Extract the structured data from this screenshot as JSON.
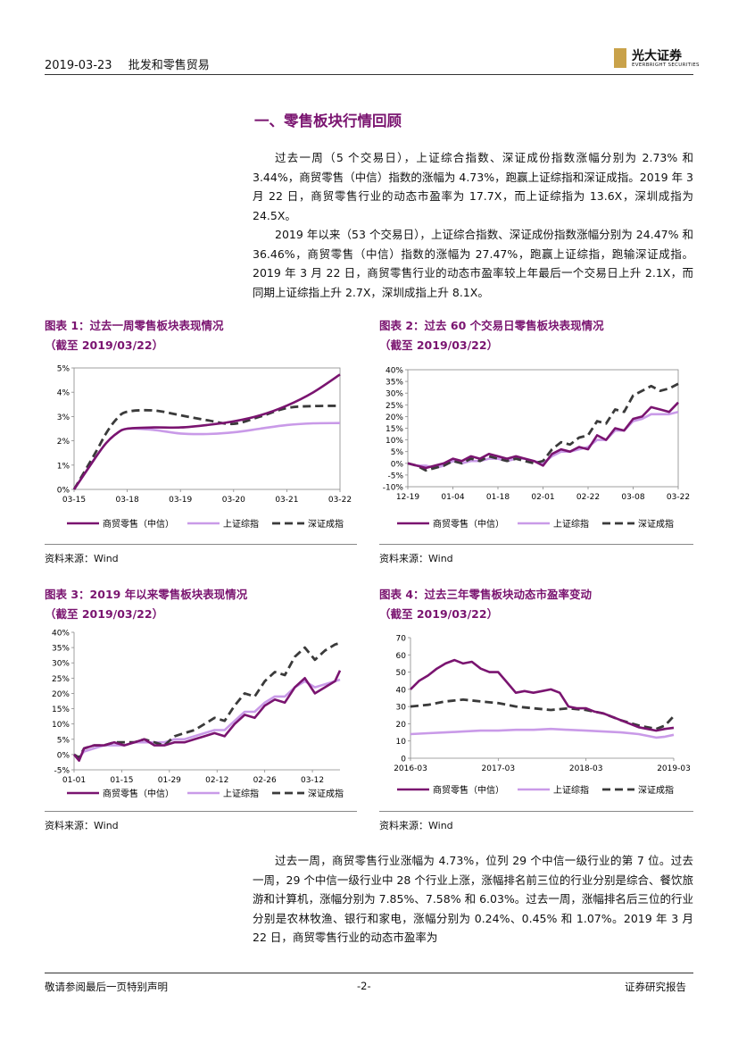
{
  "header": {
    "date": "2019-03-23",
    "industry": "批发和零售贸易",
    "logo_cn": "光大证券",
    "logo_en": "EVERBRIGHT SECURITIES"
  },
  "section_title": "一、零售板块行情回顾",
  "paragraphs_top": [
    "过去一周（5 个交易日），上证综合指数、深证成份指数涨幅分别为 2.73% 和 3.44%，商贸零售（中信）指数的涨幅为 4.73%，跑赢上证综指和深证成指。2019 年 3 月 22 日，商贸零售行业的动态市盈率为 17.7X，而上证综指为 13.6X，深圳成指为 24.5X。",
    "2019 年以来（53 个交易日），上证综合指数、深证成份指数涨幅分别为 24.47% 和 36.46%，商贸零售（中信）指数的涨幅为 27.47%，跑赢上证综指，跑输深证成指。2019 年 3 月 22 日，商贸零售行业的动态市盈率较上年最后一个交易日上升 2.1X，而同期上证综指上升 2.7X，深圳成指上升 8.1X。"
  ],
  "paragraph_bottom": "过去一周，商贸零售行业涨幅为 4.73%，位列 29 个中信一级行业的第 7 位。过去一周，29 个中信一级行业中 28 个行业上涨，涨幅排名前三位的行业分别是综合、餐饮旅游和计算机，涨幅分别为 7.85%、7.58% 和 6.03%。过去一周，涨幅排名后三位的行业分别是农林牧渔、银行和家电，涨幅分别为 0.24%、0.45% 和 1.07%。2019 年 3 月 22 日，商贸零售行业的动态市盈率为",
  "footer": {
    "left": "敬请参阅最后一页特别声明",
    "center": "-2-",
    "right": "证券研究报告"
  },
  "legend": [
    "商贸零售（中信）",
    "上证综指",
    "深证成指"
  ],
  "colors": {
    "retail": "#7a1470",
    "sh": "#c99ae8",
    "sz": "#3a3a3a",
    "title": "#7a1470"
  },
  "chart_data": [
    {
      "id": "c1",
      "type": "line",
      "title_line1": "图表 1：过去一周零售板块表现情况",
      "title_line2": "（截至 2019/03/22）",
      "source": "资料来源：Wind",
      "x_ticks": [
        "03-15",
        "03-18",
        "03-19",
        "03-20",
        "03-21",
        "03-22"
      ],
      "y_ticks": [
        "0%",
        "1%",
        "2%",
        "3%",
        "4%",
        "5%"
      ],
      "ylim": [
        0,
        5
      ],
      "smooth": true,
      "series": [
        {
          "name": "商贸零售（中信）",
          "x": [
            0,
            0.4,
            0.6,
            0.8,
            1,
            1.5,
            2,
            2.5,
            3,
            3.5,
            4,
            4.5,
            5
          ],
          "values": [
            0,
            1.3,
            1.9,
            2.3,
            2.5,
            2.55,
            2.55,
            2.65,
            2.8,
            3.05,
            3.45,
            4.0,
            4.73
          ]
        },
        {
          "name": "上证综指",
          "x": [
            0,
            0.4,
            0.6,
            0.8,
            1,
            1.5,
            2,
            2.5,
            3,
            3.5,
            4,
            4.5,
            5
          ],
          "values": [
            0,
            1.3,
            1.9,
            2.3,
            2.5,
            2.45,
            2.3,
            2.28,
            2.35,
            2.5,
            2.65,
            2.72,
            2.73
          ]
        },
        {
          "name": "深证成指",
          "x": [
            0,
            0.4,
            0.6,
            0.8,
            1,
            1.5,
            2,
            2.5,
            3,
            3.5,
            4,
            4.5,
            5
          ],
          "values": [
            0,
            1.5,
            2.3,
            2.9,
            3.2,
            3.25,
            3.05,
            2.85,
            2.7,
            3.0,
            3.35,
            3.43,
            3.44
          ]
        }
      ]
    },
    {
      "id": "c2",
      "type": "line",
      "title_line1": "图表 2：过去 60 个交易日零售板块表现情况",
      "title_line2": "（截至 2019/03/22）",
      "source": "资料来源：Wind",
      "x_ticks": [
        "12-19",
        "01-04",
        "01-18",
        "02-01",
        "02-22",
        "03-08",
        "03-22"
      ],
      "y_ticks": [
        "-10%",
        "-5%",
        "0%",
        "5%",
        "10%",
        "15%",
        "20%",
        "25%",
        "30%",
        "35%",
        "40%"
      ],
      "ylim": [
        -10,
        40
      ],
      "smooth": false,
      "series": [
        {
          "name": "商贸零售（中信）",
          "x": [
            0,
            2,
            4,
            6,
            8,
            10,
            12,
            14,
            16,
            18,
            20,
            22,
            24,
            26,
            28,
            30,
            32,
            34,
            36,
            38,
            40,
            42,
            44,
            46,
            48,
            50,
            52,
            54,
            56,
            58,
            60
          ],
          "values": [
            0,
            -1,
            -2,
            -1,
            0,
            2,
            1,
            3,
            2,
            4,
            3,
            2,
            3,
            2,
            1,
            -1,
            4,
            6,
            5,
            7,
            6,
            12,
            10,
            15,
            14,
            19,
            20,
            24,
            23,
            22,
            26
          ]
        },
        {
          "name": "上证综指",
          "x": [
            0,
            2,
            4,
            6,
            8,
            10,
            12,
            14,
            16,
            18,
            20,
            22,
            24,
            26,
            28,
            30,
            32,
            34,
            36,
            38,
            40,
            42,
            44,
            46,
            48,
            50,
            52,
            54,
            56,
            58,
            60
          ],
          "values": [
            0,
            -1,
            -1,
            -2,
            -1,
            1,
            0,
            1,
            1,
            2,
            2,
            1,
            2,
            2,
            1,
            0,
            3,
            5,
            5,
            6,
            7,
            10,
            10,
            14,
            14,
            18,
            19,
            21,
            21,
            21,
            22
          ]
        },
        {
          "name": "深证成指",
          "x": [
            0,
            2,
            4,
            6,
            8,
            10,
            12,
            14,
            16,
            18,
            20,
            22,
            24,
            26,
            28,
            30,
            32,
            34,
            36,
            38,
            40,
            42,
            44,
            46,
            48,
            50,
            52,
            54,
            56,
            58,
            60
          ],
          "values": [
            0,
            -1,
            -3,
            -2,
            -1,
            1,
            0,
            2,
            1,
            3,
            2,
            1,
            2,
            1,
            0,
            1,
            6,
            9,
            8,
            11,
            12,
            18,
            17,
            23,
            22,
            29,
            31,
            33,
            31,
            32,
            34
          ]
        }
      ]
    },
    {
      "id": "c3",
      "type": "line",
      "title_line1": "图表 3：2019 年以来零售板块表现情况",
      "title_line2": "（截至 2019/03/22）",
      "source": "资料来源：Wind",
      "x_ticks": [
        "01-01",
        "01-15",
        "01-29",
        "02-12",
        "02-26",
        "03-12"
      ],
      "y_ticks": [
        "-5%",
        "0%",
        "5%",
        "10%",
        "15%",
        "20%",
        "25%",
        "30%",
        "35%",
        "40%"
      ],
      "ylim": [
        -5,
        40
      ],
      "smooth": false,
      "series": [
        {
          "name": "商贸零售（中信）",
          "x": [
            0,
            1,
            2,
            4,
            6,
            8,
            10,
            12,
            14,
            16,
            18,
            20,
            22,
            24,
            26,
            28,
            30,
            32,
            34,
            36,
            38,
            40,
            42,
            44,
            46,
            48,
            50,
            52,
            53
          ],
          "values": [
            0,
            -2,
            2,
            3,
            3,
            4,
            3,
            4,
            5,
            3,
            3,
            4,
            4,
            5,
            6,
            7,
            6,
            10,
            13,
            12,
            16,
            18,
            17,
            22,
            25,
            20,
            22,
            24,
            27.5
          ]
        },
        {
          "name": "上证综指",
          "x": [
            0,
            1,
            2,
            4,
            6,
            8,
            10,
            12,
            14,
            16,
            18,
            20,
            22,
            24,
            26,
            28,
            30,
            32,
            34,
            36,
            38,
            40,
            42,
            44,
            46,
            48,
            50,
            52,
            53
          ],
          "values": [
            0,
            -1,
            1,
            2,
            3,
            3,
            3,
            4,
            4,
            4,
            4,
            5,
            5,
            6,
            7,
            8,
            8,
            11,
            14,
            14,
            17,
            19,
            19,
            22,
            24,
            22,
            23,
            24,
            24.5
          ]
        },
        {
          "name": "深证成指",
          "x": [
            0,
            1,
            2,
            4,
            6,
            8,
            10,
            12,
            14,
            16,
            18,
            20,
            22,
            24,
            26,
            28,
            30,
            32,
            34,
            36,
            38,
            40,
            42,
            44,
            46,
            48,
            50,
            52,
            53
          ],
          "values": [
            0,
            -1,
            2,
            3,
            3,
            4,
            4,
            4,
            5,
            4,
            3,
            6,
            7,
            8,
            10,
            12,
            11,
            16,
            20,
            19,
            24,
            27,
            26,
            32,
            35,
            31,
            34,
            36,
            36.5
          ]
        }
      ]
    },
    {
      "id": "c4",
      "type": "line",
      "title_line1": "图表 4：过去三年零售板块动态市盈率变动",
      "title_line2": "（截至 2019/03/22）",
      "source": "资料来源：Wind",
      "x_ticks": [
        "2016-03",
        "2017-03",
        "2018-03",
        "2019-03"
      ],
      "y_ticks": [
        "0",
        "10",
        "20",
        "30",
        "40",
        "50",
        "60",
        "70"
      ],
      "ylim": [
        0,
        70
      ],
      "smooth": false,
      "series": [
        {
          "name": "商贸零售（中信）",
          "x": [
            0,
            0.1,
            0.2,
            0.3,
            0.4,
            0.5,
            0.6,
            0.7,
            0.8,
            0.9,
            1.0,
            1.1,
            1.2,
            1.3,
            1.4,
            1.5,
            1.6,
            1.7,
            1.8,
            1.9,
            2.0,
            2.1,
            2.2,
            2.3,
            2.4,
            2.5,
            2.6,
            2.7,
            2.8,
            2.9,
            3.0
          ],
          "values": [
            40,
            45,
            48,
            52,
            55,
            57,
            55,
            56,
            52,
            50,
            50,
            44,
            38,
            39,
            38,
            39,
            40,
            38,
            30,
            29,
            29,
            27,
            26,
            24,
            22,
            20,
            18,
            17,
            16,
            17,
            17.7
          ]
        },
        {
          "name": "上证综指",
          "x": [
            0,
            0.2,
            0.4,
            0.6,
            0.8,
            1.0,
            1.2,
            1.4,
            1.6,
            1.8,
            2.0,
            2.2,
            2.4,
            2.6,
            2.8,
            2.9,
            3.0
          ],
          "values": [
            14,
            14.5,
            15,
            15.5,
            16,
            16,
            16.5,
            16.5,
            17,
            16.5,
            16,
            15.5,
            15,
            14,
            12,
            12.5,
            13.6
          ]
        },
        {
          "name": "深证成指",
          "x": [
            0,
            0.2,
            0.4,
            0.6,
            0.8,
            1.0,
            1.2,
            1.4,
            1.6,
            1.8,
            2.0,
            2.2,
            2.4,
            2.6,
            2.8,
            2.9,
            3.0
          ],
          "values": [
            30,
            31,
            33,
            34,
            33,
            32,
            30,
            29,
            28,
            29,
            28,
            26,
            22,
            19,
            17,
            19,
            24.5
          ]
        }
      ]
    }
  ]
}
